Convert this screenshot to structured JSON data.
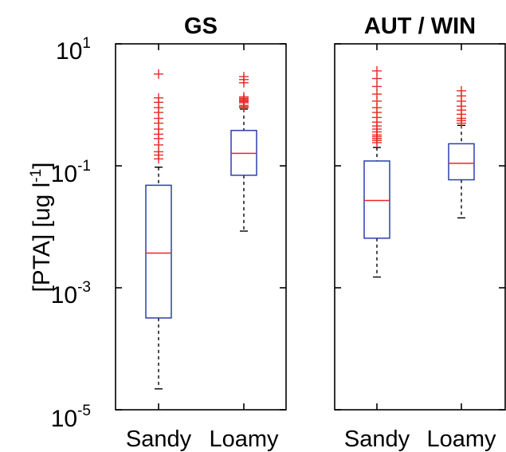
{
  "chart_data": {
    "type": "boxplot",
    "yscale": "log",
    "ylim": [
      1e-05,
      10
    ],
    "ylabel": {
      "text": "[PTA] [ug l",
      "superscript": "-1",
      "suffix": "]"
    },
    "yticks": [
      {
        "value": 10,
        "base": "10",
        "exp": "1"
      },
      {
        "value": 0.1,
        "base": "10",
        "exp": "-1"
      },
      {
        "value": 0.001,
        "base": "10",
        "exp": "-3"
      },
      {
        "value": 1e-05,
        "base": "10",
        "exp": "-5"
      }
    ],
    "categories": [
      "Sandy",
      "Loamy"
    ],
    "panels": [
      {
        "title": "GS",
        "boxes": [
          {
            "category": "Sandy",
            "whisker_low": 2.2e-05,
            "q1": 0.00032,
            "median": 0.0037,
            "q3": 0.048,
            "whisker_high": 0.095,
            "outliers": [
              3.2,
              1.3,
              1.1,
              0.9,
              0.75,
              0.6,
              0.5,
              0.4,
              0.33,
              0.28,
              0.22,
              0.17,
              0.15,
              0.13
            ]
          },
          {
            "category": "Loamy",
            "whisker_low": 0.0085,
            "q1": 0.07,
            "median": 0.16,
            "q3": 0.38,
            "whisker_high": 0.85,
            "outliers": [
              2.9,
              2.6,
              2.3,
              1.35,
              1.28,
              1.22,
              1.18,
              1.13,
              1.08,
              0.98,
              0.93,
              0.9
            ]
          }
        ]
      },
      {
        "title": "AUT / WIN",
        "boxes": [
          {
            "category": "Sandy",
            "whisker_low": 0.0015,
            "q1": 0.0065,
            "median": 0.027,
            "q3": 0.12,
            "whisker_high": 0.2,
            "outliers": [
              3.6,
              2.7,
              2.0,
              1.5,
              1.15,
              0.9,
              0.75,
              0.62,
              0.52,
              0.45,
              0.4,
              0.36,
              0.32,
              0.3,
              0.28,
              0.26,
              0.24
            ]
          },
          {
            "category": "Loamy",
            "whisker_low": 0.014,
            "q1": 0.059,
            "median": 0.11,
            "q3": 0.23,
            "whisker_high": 0.46,
            "outliers": [
              1.7,
              1.4,
              1.15,
              0.95,
              0.82,
              0.7,
              0.6,
              0.55,
              0.5
            ]
          }
        ]
      }
    ],
    "colors": {
      "box_edge": "#2b3fb0",
      "median": "#e8262a",
      "outlier": "#ea2a2a",
      "whisker": "#000000"
    },
    "grid": false,
    "legend": "none"
  }
}
